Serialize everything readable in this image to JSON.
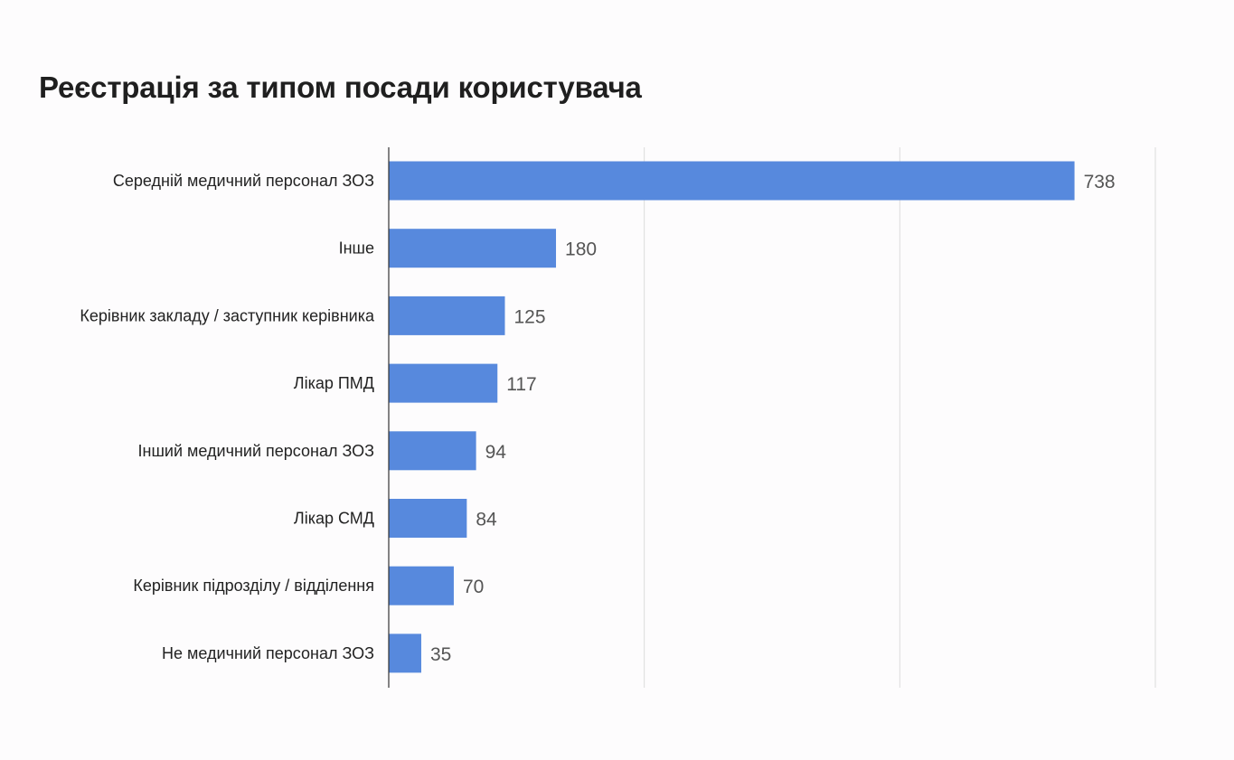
{
  "chart_data": {
    "type": "bar",
    "orientation": "horizontal",
    "title": "Реєстрація за типом посади користувача",
    "xlabel": "",
    "ylabel": "",
    "categories": [
      "Середній медичний персонал ЗОЗ",
      "Інше",
      "Керівник закладу / заступник керівника",
      "Лікар ПМД",
      "Інший медичний персонал ЗОЗ",
      "Лікар СМД",
      "Керівник підрозділу / відділення",
      "Не медичний персонал ЗОЗ"
    ],
    "values": [
      738,
      180,
      125,
      117,
      94,
      84,
      70,
      35
    ],
    "xlim": [
      0,
      825
    ],
    "gridlines": [
      0,
      275,
      550,
      825
    ],
    "grid": true,
    "tick_labels_visible": false,
    "data_labels": true,
    "legend": "none",
    "bar_color": "#5789dd",
    "grid_color": "#dcdcdc",
    "axis_color": "#333333"
  }
}
